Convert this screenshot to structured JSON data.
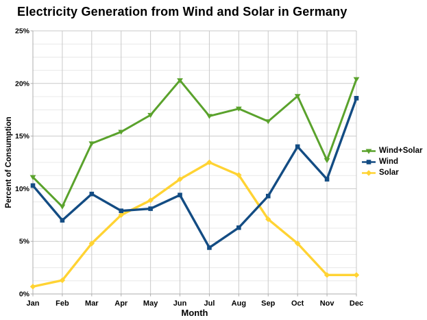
{
  "chart_data": {
    "type": "line",
    "title": "Electricity Generation from Wind and Solar in Germany",
    "xlabel": "Month",
    "ylabel": "Percent of Consumption",
    "categories": [
      "Jan",
      "Feb",
      "Mar",
      "Apr",
      "May",
      "Jun",
      "Jul",
      "Aug",
      "Sep",
      "Oct",
      "Nov",
      "Dec"
    ],
    "series": [
      {
        "name": "Wind+Solar",
        "color": "#5aa22c",
        "marker": "triangle-down",
        "width": 3,
        "values": [
          11.1,
          8.3,
          14.3,
          15.4,
          17.0,
          20.3,
          16.9,
          17.6,
          16.4,
          18.8,
          12.7,
          20.4
        ]
      },
      {
        "name": "Wind",
        "color": "#134c83",
        "marker": "square",
        "width": 3.4,
        "values": [
          10.3,
          7.0,
          9.5,
          7.9,
          8.1,
          9.4,
          4.4,
          6.3,
          9.3,
          14.0,
          10.9,
          18.6
        ]
      },
      {
        "name": "Solar",
        "color": "#ffd333",
        "marker": "diamond",
        "width": 3.4,
        "values": [
          0.7,
          1.3,
          4.8,
          7.5,
          8.9,
          10.9,
          12.5,
          11.3,
          7.1,
          4.8,
          1.8,
          1.8
        ]
      }
    ],
    "ylim": [
      0,
      25
    ],
    "y_major_step": 5,
    "y_minor_step": 1.25,
    "y_tick_labels": [
      "0%",
      "5%",
      "10%",
      "15%",
      "20%",
      "25%"
    ],
    "grid": true,
    "legend_position": "right",
    "draw_order": [
      2,
      0,
      1
    ],
    "colors": {
      "minor_gridline": "#e8e8e8",
      "major_gridline": "#c9c9c9",
      "axis_line": "#adadad",
      "text": "#000000"
    }
  }
}
